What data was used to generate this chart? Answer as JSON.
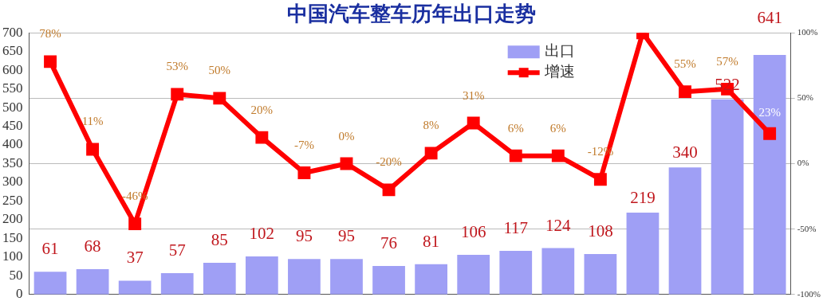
{
  "chart_data": {
    "type": "bar",
    "title": "中国汽车整车历年出口走势",
    "categories": [
      null,
      null,
      null,
      null,
      null,
      null,
      null,
      null,
      null,
      null,
      null,
      null,
      null,
      null,
      null,
      null,
      null,
      null
    ],
    "series": [
      {
        "name": "出口",
        "color": "#9f9ff5",
        "values": [
          61,
          68,
          37,
          57,
          85,
          102,
          95,
          95,
          76,
          81,
          106,
          117,
          124,
          108,
          219,
          340,
          522,
          641
        ],
        "value_labels": [
          "61",
          "68",
          "37",
          "57",
          "85",
          "102",
          "95",
          "95",
          "76",
          "81",
          "106",
          "117",
          "124",
          "108",
          "219",
          "340",
          "522",
          "641"
        ]
      },
      {
        "name": "增速",
        "type": "line",
        "axis": "y2",
        "color": "#ff0000",
        "values": [
          78,
          11,
          -46,
          53,
          50,
          20,
          -7,
          0,
          -20,
          8,
          31,
          6,
          6,
          -12,
          100,
          55,
          57,
          23
        ],
        "value_labels": [
          "78%",
          "11%",
          "-46%",
          "53%",
          "50%",
          "20%",
          "-7%",
          "0%",
          "-20%",
          "8%",
          "31%",
          "6%",
          "6%",
          "-12%",
          null,
          "55%",
          "57%",
          "23%"
        ]
      }
    ],
    "ylim": [
      0,
      700
    ],
    "yticks": [
      0,
      50,
      100,
      150,
      200,
      250,
      300,
      350,
      400,
      450,
      500,
      550,
      600,
      650,
      700
    ],
    "y2lim": [
      -100,
      100
    ],
    "y2ticks": [
      {
        "value": -100,
        "label": "-100%"
      },
      {
        "value": -50,
        "label": "-50%"
      },
      {
        "value": 0,
        "label": "0%"
      },
      {
        "value": 50,
        "label": "50%"
      },
      {
        "value": 100,
        "label": "100%"
      }
    ],
    "grid": "y2",
    "legend": "top right",
    "marker": "square",
    "line_style": "solid"
  }
}
